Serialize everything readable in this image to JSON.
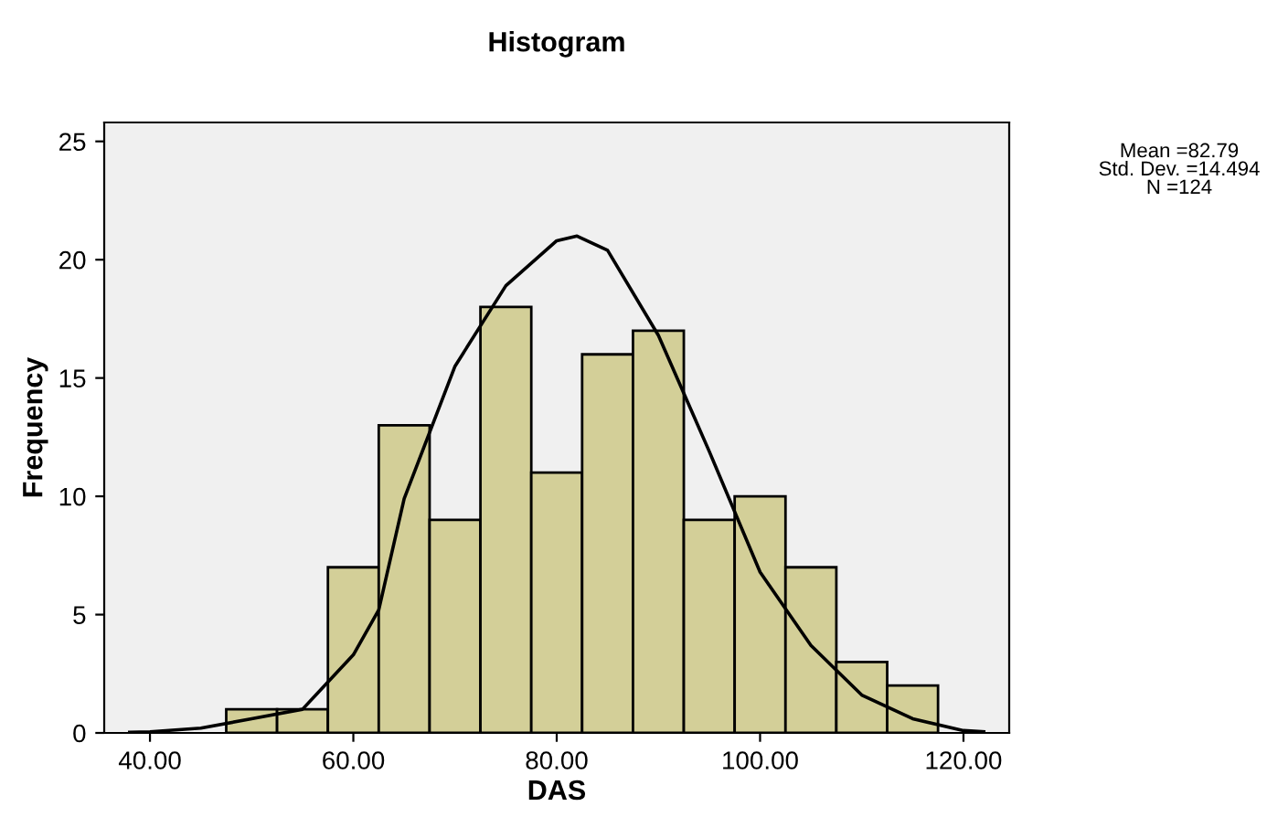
{
  "chart_data": {
    "type": "histogram",
    "title": "Histogram",
    "xlabel": "DAS",
    "ylabel": "Frequency",
    "bins": [
      47.5,
      52.5,
      57.5,
      62.5,
      67.5,
      72.5,
      77.5,
      82.5,
      87.5,
      92.5,
      97.5,
      102.5,
      107.5,
      112.5,
      117.5
    ],
    "series": [
      {
        "color": "#d3cf98",
        "values": [
          1,
          1,
          7,
          13,
          9,
          18,
          11,
          16,
          17,
          9,
          10,
          7,
          3,
          2
        ]
      },
      {
        "type": "line",
        "color": "#000000",
        "x": [
          38,
          40,
          45,
          50,
          55,
          60,
          62.5,
          65,
          70,
          75,
          80,
          82,
          85,
          90,
          95,
          100,
          105,
          110,
          115,
          120,
          122
        ],
        "values": [
          0.03,
          0.05,
          0.2,
          0.6,
          1.0,
          3.3,
          5.2,
          9.9,
          15.5,
          18.9,
          20.8,
          21,
          20.4,
          16.8,
          11.9,
          6.8,
          3.7,
          1.6,
          0.6,
          0.1,
          0.05
        ]
      }
    ],
    "xlim": [
      35.5,
      124.5
    ],
    "ylim": [
      0,
      25.8
    ],
    "xticks": [
      {
        "value": 40,
        "label": "40.00"
      },
      {
        "value": 60,
        "label": "60.00"
      },
      {
        "value": 80,
        "label": "80.00"
      },
      {
        "value": 100,
        "label": "100.00"
      },
      {
        "value": 120,
        "label": "120.00"
      }
    ],
    "yticks": [
      0,
      5,
      10,
      15,
      20,
      25
    ],
    "annotations": [
      "Mean =82.79\nStd. Dev. =14.494\nN =124"
    ]
  }
}
